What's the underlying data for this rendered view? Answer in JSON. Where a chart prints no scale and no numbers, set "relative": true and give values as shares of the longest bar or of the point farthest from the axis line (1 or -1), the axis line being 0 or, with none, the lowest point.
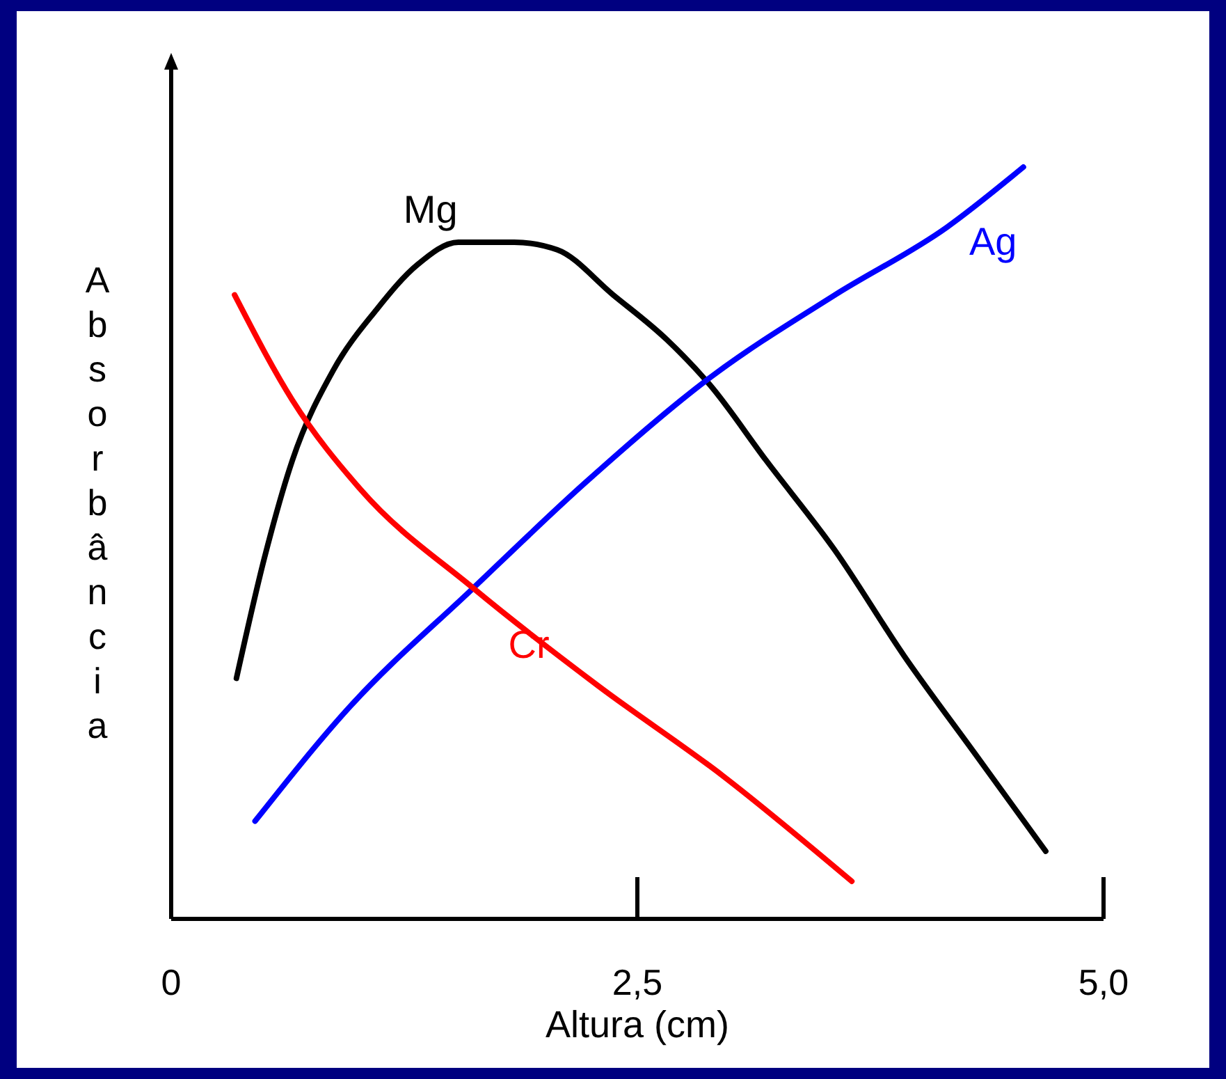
{
  "chart_data": {
    "type": "line",
    "xlabel": "Altura (cm)",
    "ylabel": "Absorbância",
    "relative": true,
    "xlim": [
      0,
      5
    ],
    "xticks": [
      0,
      {
        "value": 2.5,
        "label": "2,5"
      },
      {
        "value": 5,
        "label": "5,0"
      }
    ],
    "grid": false,
    "line_style": "solid",
    "series": [
      {
        "name": "Mg",
        "color": "#000000",
        "x": [
          0.35,
          0.5,
          0.65,
          0.87,
          1.1,
          1.32,
          1.54,
          1.84,
          2.07,
          2.37,
          2.66,
          2.89,
          3.19,
          3.56,
          3.93,
          4.31,
          4.69
        ],
        "values": [
          0.32,
          0.48,
          0.61,
          0.73,
          0.81,
          0.87,
          0.9,
          0.9,
          0.89,
          0.83,
          0.77,
          0.71,
          0.61,
          0.49,
          0.35,
          0.22,
          0.09
        ]
      },
      {
        "name": "Ag",
        "color": "#0000ff",
        "x": [
          0.45,
          0.95,
          1.62,
          2.22,
          2.89,
          3.56,
          4.16,
          4.57
        ],
        "values": [
          0.13,
          0.28,
          0.44,
          0.58,
          0.72,
          0.83,
          0.92,
          1.0
        ]
      },
      {
        "name": "Cr",
        "color": "#ff0000",
        "x": [
          0.34,
          0.65,
          1.02,
          1.62,
          2.29,
          2.96,
          3.65
        ],
        "values": [
          0.83,
          0.69,
          0.57,
          0.44,
          0.31,
          0.19,
          0.05
        ]
      }
    ]
  }
}
